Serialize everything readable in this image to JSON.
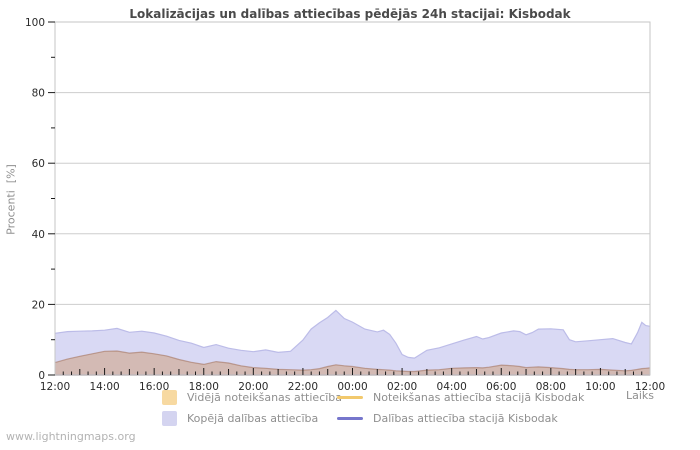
{
  "watermark": "www.lightningmaps.org",
  "chart_data": {
    "type": "area",
    "title": "Lokalizācijas un dalības attiecības pēdējās 24h stacijai: Kisbodak",
    "xlabel": "Laiks",
    "ylabel": "Procenti  [%]",
    "grid": "horizontal-major-only",
    "legend_position": "bottom",
    "colors": {
      "kopeja_fill": "#d9d9f4",
      "kopeja_edge": "#bcbce8",
      "videja_fill": "rgba(205,156,115,0.5)",
      "videja_edge": "rgba(160,110,85,0.55)",
      "noteiksanas_line": "#f2c96d",
      "dalibas_line": "#7676cc",
      "gridline": "#cdcdcd",
      "plot_border": "#c6c6c6",
      "tick": "#1a1a1a",
      "tick_label": "#2b2b2b"
    },
    "y_axis": {
      "min": 0,
      "max": 100,
      "major_ticks": [
        0,
        20,
        40,
        60,
        80,
        100
      ],
      "minor_ticks": [
        10,
        30,
        50,
        70,
        90
      ],
      "gridlines": [
        20,
        40,
        60,
        80,
        100
      ]
    },
    "x_axis": {
      "span_hours": 24,
      "major_interval_hours": 2,
      "minor_interval_minutes": 20,
      "labels": [
        "12:00",
        "14:00",
        "16:00",
        "18:00",
        "20:00",
        "22:00",
        "00:00",
        "02:00",
        "04:00",
        "06:00",
        "08:00",
        "10:00",
        "12:00"
      ]
    },
    "x": [
      0,
      0.5,
      1,
      1.5,
      2,
      2.5,
      3,
      3.5,
      4,
      4.5,
      5,
      5.5,
      6,
      6.5,
      7,
      7.5,
      8,
      8.5,
      9,
      9.5,
      10,
      10.33,
      10.67,
      11,
      11.33,
      11.67,
      12,
      12.5,
      13,
      13.25,
      13.5,
      13.75,
      14,
      14.25,
      14.5,
      15,
      15.5,
      16,
      16.5,
      17,
      17.25,
      17.5,
      18,
      18.5,
      18.75,
      19,
      19.25,
      19.5,
      20,
      20.5,
      20.75,
      21,
      21.5,
      22,
      22.5,
      23,
      23.25,
      23.5,
      23.67,
      23.83,
      24
    ],
    "series": [
      {
        "name": "Kopējā dalības attiecība",
        "kind": "area",
        "fill_key": "kopeja_fill",
        "stroke_key": "kopeja_edge",
        "values": [
          11.8,
          12.3,
          12.4,
          12.5,
          12.7,
          13.2,
          12.1,
          12.4,
          11.9,
          11.0,
          9.8,
          9.0,
          7.8,
          8.6,
          7.6,
          7.0,
          6.6,
          7.1,
          6.4,
          6.7,
          9.9,
          13.0,
          14.8,
          16.3,
          18.3,
          16.0,
          15.0,
          13.0,
          12.2,
          12.7,
          11.5,
          9.0,
          5.8,
          5.0,
          4.8,
          7.0,
          7.7,
          8.8,
          9.9,
          10.9,
          10.2,
          10.6,
          11.9,
          12.5,
          12.3,
          11.4,
          12.0,
          13.0,
          13.1,
          12.8,
          10.0,
          9.4,
          9.7,
          10.0,
          10.3,
          9.2,
          8.8,
          12.0,
          14.9,
          14.0,
          13.8
        ]
      },
      {
        "name": "Vidējā noteikšanas attiecība",
        "kind": "area",
        "fill_key": "videja_fill",
        "stroke_key": "videja_edge",
        "values": [
          3.5,
          4.5,
          5.3,
          6.0,
          6.7,
          6.8,
          6.2,
          6.5,
          6.0,
          5.4,
          4.4,
          3.6,
          3.0,
          3.8,
          3.4,
          2.6,
          2.1,
          1.9,
          1.6,
          1.5,
          1.4,
          1.5,
          1.8,
          2.4,
          2.9,
          2.6,
          2.4,
          1.9,
          1.6,
          1.5,
          1.4,
          1.2,
          1.1,
          1.0,
          1.0,
          1.4,
          1.5,
          1.9,
          2.0,
          2.1,
          2.0,
          2.2,
          2.8,
          2.6,
          2.4,
          2.1,
          2.2,
          2.3,
          2.1,
          1.8,
          1.6,
          1.5,
          1.5,
          1.6,
          1.4,
          1.2,
          1.3,
          1.6,
          1.8,
          1.9,
          2.0
        ]
      },
      {
        "name": "Noteikšanas attiecība stacijā Kisbodak",
        "kind": "line",
        "stroke_key": "noteiksanas_line",
        "constant": 0
      },
      {
        "name": "Dalības attiecība stacijā Kisbodak",
        "kind": "line",
        "stroke_key": "dalibas_line",
        "constant": 0
      }
    ],
    "legend": [
      {
        "label": "Vidējā noteikšanas attiecība",
        "swatch": "square",
        "color": "#f7d9a1"
      },
      {
        "label": "Noteikšanas attiecība stacijā Kisbodak",
        "swatch": "line",
        "color": "#f2c96d"
      },
      {
        "label": "Kopējā dalības attiecība",
        "swatch": "square",
        "color": "#d4d4f0"
      },
      {
        "label": "Dalības attiecība stacijā Kisbodak",
        "swatch": "line",
        "color": "#7676cc"
      }
    ]
  }
}
